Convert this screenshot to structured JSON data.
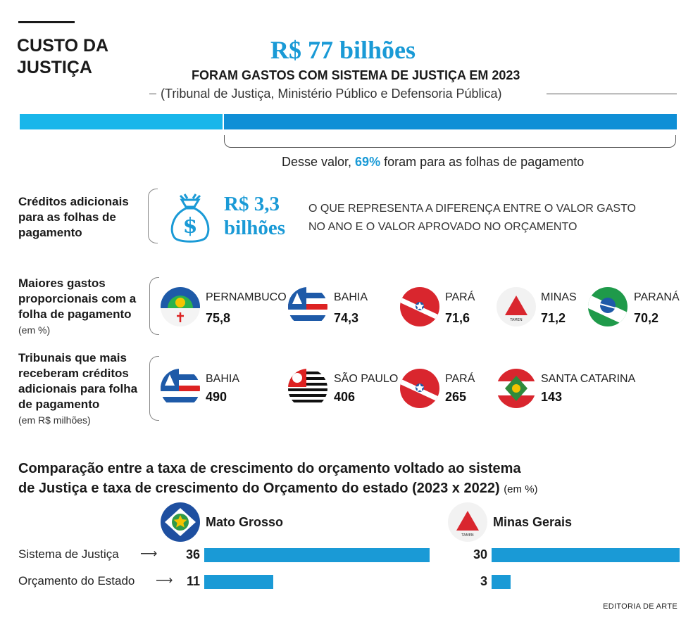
{
  "header": {
    "title": "CUSTO DA JUSTIÇA",
    "amount": "R$ 77 bilhões",
    "subtitle": "FORAM GASTOS COM SISTEMA DE JUSTIÇA EM 2023",
    "orgaos": "(Tribunal de Justiça, Ministério Público e Defensoria Pública)",
    "desse_prefix": "Desse valor, ",
    "desse_pct": "69%",
    "desse_suffix": " foram para as folhas de pagamento"
  },
  "colors": {
    "accent": "#1a9ad6",
    "light_bar": "#19b6ea",
    "dark_bar": "#0f8fd6"
  },
  "creditos": {
    "label": "Créditos adicionais para as folhas de pagamento",
    "icon": "money-bag-icon",
    "amount_line1": "R$ 3,3",
    "amount_line2": "bilhões",
    "desc_line1": "O QUE REPRESENTA A DIFERENÇA ENTRE O VALOR GASTO",
    "desc_line2": "NO ANO E O VALOR APROVADO NO ORÇAMENTO"
  },
  "maiores": {
    "label": "Maiores gastos proporcionais com a folha de pagamento",
    "unit": "(em %)",
    "items": [
      {
        "state": "PERNAMBUCO",
        "value": "75,8"
      },
      {
        "state": "BAHIA",
        "value": "74,3"
      },
      {
        "state": "PARÁ",
        "value": "71,6"
      },
      {
        "state": "MINAS",
        "value": "71,2"
      },
      {
        "state": "PARANÁ",
        "value": "70,2"
      }
    ]
  },
  "tribunais": {
    "label": "Tribunais que mais receberam créditos adicionais para folha de pagamento",
    "unit": "(em R$ milhões)",
    "items": [
      {
        "state": "BAHIA",
        "value": "490"
      },
      {
        "state": "SÃO PAULO",
        "value": "406"
      },
      {
        "state": "PARÁ",
        "value": "265"
      },
      {
        "state": "SANTA CATARINA",
        "value": "143"
      }
    ]
  },
  "comparacao": {
    "title_line1": "Comparação entre a taxa de crescimento do orçamento voltado ao sistema",
    "title_line2": "de Justiça e taxa de crescimento do Orçamento do estado (2023 x 2022)",
    "unit": "(em %)",
    "row_labels": [
      "Sistema de Justiça",
      "Orçamento do Estado"
    ]
  },
  "chart_data": {
    "type": "bar",
    "categories": [
      "Sistema de Justiça",
      "Orçamento do Estado"
    ],
    "series": [
      {
        "name": "Mato Grosso",
        "values": [
          36,
          11
        ]
      },
      {
        "name": "Minas Gerais",
        "values": [
          30,
          3
        ]
      }
    ],
    "xlim": [
      0,
      36
    ]
  },
  "credit": "EDITORIA DE ARTE"
}
